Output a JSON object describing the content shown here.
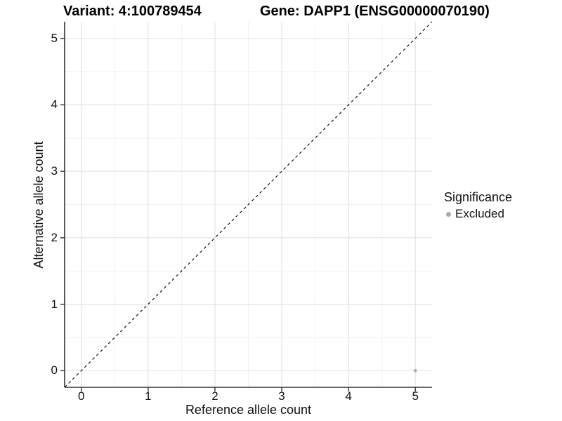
{
  "titles": {
    "variant": "Variant: 4:100789454",
    "gene": "Gene: DAPP1 (ENSG00000070190)"
  },
  "chart_data": {
    "type": "scatter",
    "titles": {
      "left": "Variant: 4:100789454",
      "right": "Gene: DAPP1 (ENSG00000070190)"
    },
    "xlabel": "Reference allele count",
    "ylabel": "Alternative allele count",
    "xlim": [
      -0.25,
      5.25
    ],
    "ylim": [
      -0.25,
      5.25
    ],
    "x_ticks": [
      0,
      1,
      2,
      3,
      4,
      5
    ],
    "y_ticks": [
      0,
      1,
      2,
      3,
      4,
      5
    ],
    "x_minor": [
      0.5,
      1.5,
      2.5,
      3.5,
      4.5
    ],
    "y_minor": [
      0.5,
      1.5,
      2.5,
      3.5,
      4.5
    ],
    "grid": true,
    "points": [
      {
        "x": 5,
        "y": 0,
        "significance": "Excluded",
        "color": "#b0b0b0"
      }
    ],
    "identity_line": {
      "slope": 1,
      "intercept": 0,
      "style": "dashed",
      "color": "#000000"
    },
    "legend_position": "right",
    "legend": {
      "title": "Significance",
      "entries": [
        {
          "label": "Excluded",
          "color": "#a9a9a9"
        }
      ]
    },
    "colors": {
      "background": "#ffffff",
      "grid_major": "#e4e4e4",
      "grid_minor": "#f1f1f1",
      "axis": "#333333",
      "tick_text": "#111111",
      "point_excluded": "#b0b0b0"
    }
  }
}
